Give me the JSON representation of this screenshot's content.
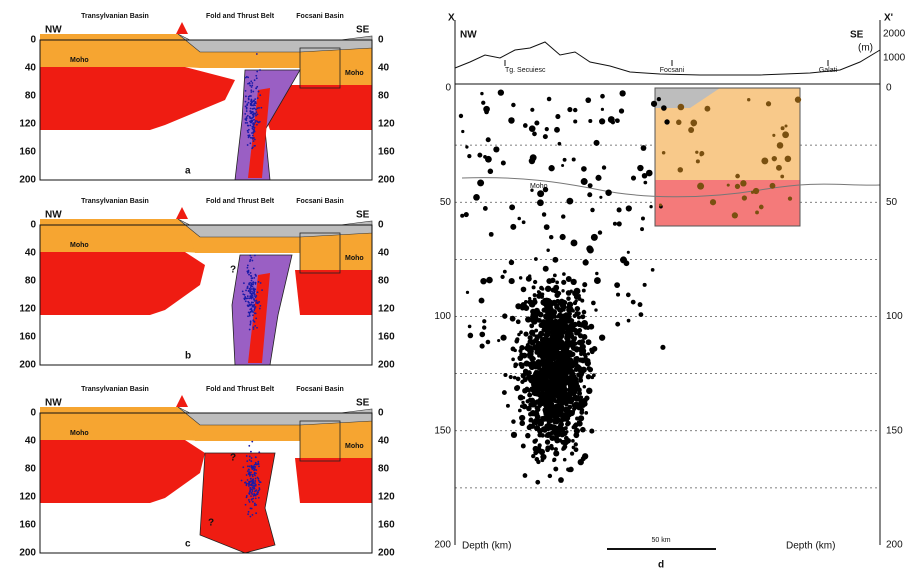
{
  "panels_abc": [
    {
      "label": "a",
      "nw": "NW",
      "se": "SE",
      "headings": [
        "Transylvanian Basin",
        "Fold and Thrust Belt",
        "Focsani Basin"
      ],
      "moho": [
        "Moho",
        "Moho"
      ],
      "question": [],
      "depth_left": [
        0,
        40,
        80,
        120,
        160,
        200
      ],
      "depth_right": [
        0,
        40,
        80,
        120,
        160,
        200
      ]
    },
    {
      "label": "b",
      "nw": "NW",
      "se": "SE",
      "headings": [
        "Transylvanian Basin",
        "Fold and Thrust Belt",
        "Focsani Basin"
      ],
      "moho": [
        "Moho",
        "Moho"
      ],
      "question": [
        "?"
      ],
      "depth_left": [
        0,
        40,
        80,
        120,
        160,
        200
      ],
      "depth_right": [
        0,
        40,
        80,
        120,
        160,
        200
      ]
    },
    {
      "label": "c",
      "nw": "NW",
      "se": "SE",
      "headings": [
        "Transylvanian Basin",
        "Fold and Thrust Belt",
        "Focsani Basin"
      ],
      "moho": [
        "Moho",
        "Moho"
      ],
      "question": [
        "?",
        "?"
      ],
      "depth_left": [
        0,
        40,
        80,
        120,
        160,
        200
      ],
      "depth_right": [
        0,
        40,
        80,
        120,
        160,
        200
      ]
    }
  ],
  "panel_d": {
    "label": "d",
    "x_left": "X",
    "x_right": "X'",
    "nw": "NW",
    "se": "SE",
    "elev_ticks": [
      2000,
      1000
    ],
    "elev_unit": "(m)",
    "places": [
      "Tg. Secuiesc",
      "Focsani",
      "Galati"
    ],
    "moho": "Moho",
    "depth_left": [
      0,
      50,
      100,
      150,
      200
    ],
    "depth_right": [
      0,
      50,
      100,
      150,
      200
    ],
    "axis_left": "Depth (km)",
    "axis_right": "Depth (km)",
    "scale": "50 km"
  }
}
